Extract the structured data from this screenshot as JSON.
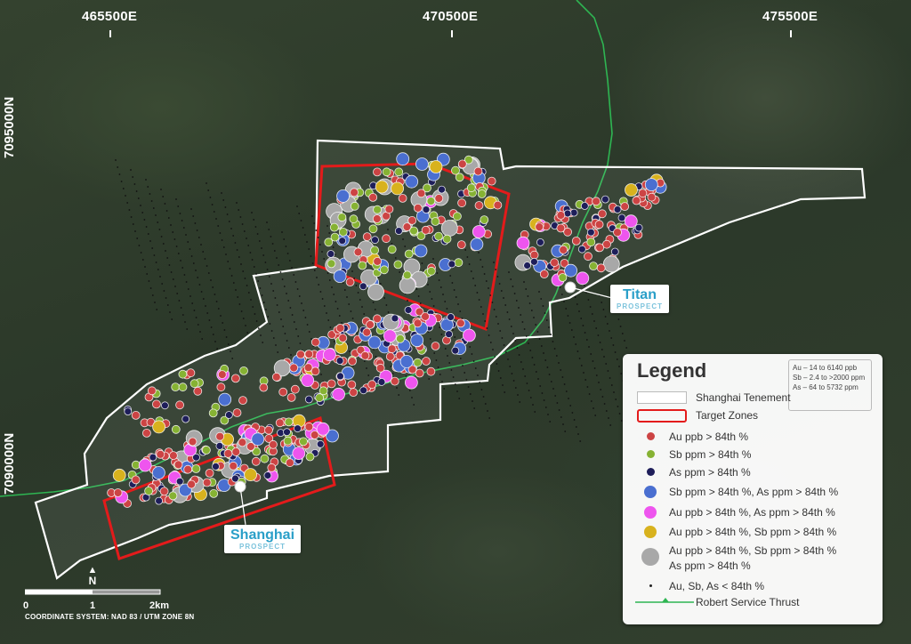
{
  "grid": {
    "eastings": [
      "465500E",
      "470500E",
      "475500E"
    ],
    "northings": [
      "7095000N",
      "7090000N"
    ]
  },
  "prospects": {
    "titan": {
      "name": "Titan",
      "type": "PROSPECT"
    },
    "shanghai": {
      "name": "Shanghai",
      "type": "PROSPECT"
    }
  },
  "legend": {
    "title": "Legend",
    "ranges": [
      "Au – 14 to 6140 ppb",
      "Sb – 2.4 to >2000 ppm",
      "As – 64 to 5732 ppm"
    ],
    "items": [
      {
        "label": "Shanghai Tenement"
      },
      {
        "label": "Target Zones"
      },
      {
        "label": "Au ppb > 84th %"
      },
      {
        "label": "Sb ppm > 84th %"
      },
      {
        "label": "As ppm > 84th %"
      },
      {
        "label": "Sb ppm > 84th %, As ppm > 84th %"
      },
      {
        "label": "Au ppb > 84th %, As ppm > 84th %"
      },
      {
        "label": "Au ppb > 84th %, Sb ppm > 84th %"
      },
      {
        "label": "Au ppb > 84th %, Sb ppm > 84th %"
      },
      {
        "label": "As ppm > 84th %"
      },
      {
        "label": "Au, Sb, As < 84th %"
      },
      {
        "label": "Robert Service Thrust"
      }
    ]
  },
  "colors": {
    "au": "#cc4444",
    "sb": "#86b233",
    "as": "#1e1e5a",
    "sb_as": "#4a6fd0",
    "au_as": "#ee55ee",
    "au_sb": "#d8b21e",
    "au_sb_as": "#a8a8a8",
    "tenement": "#ffffff",
    "target": "#e31b1b",
    "thrust": "#2eb552"
  },
  "scale_bar": {
    "labels": [
      "0",
      "1",
      "2km"
    ]
  },
  "north": "N",
  "coordinate_system": "COORDINATE SYSTEM: NAD 83 / UTM ZONE 8N"
}
